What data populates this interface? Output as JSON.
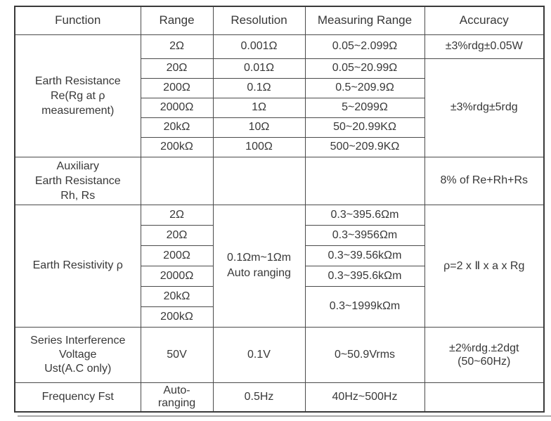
{
  "table": {
    "headers": {
      "function": "Function",
      "range": "Range",
      "resolution": "Resolution",
      "measuring_range": "Measuring Range",
      "accuracy": "Accuracy"
    },
    "earth_resistance": {
      "function_label": "Earth Resistance\nRe(Rg at ρ\nmeasurement)",
      "rows": [
        {
          "range": "2Ω",
          "resolution": "0.001Ω",
          "measuring_range": "0.05~2.099Ω"
        },
        {
          "range": "20Ω",
          "resolution": "0.01Ω",
          "measuring_range": "0.05~20.99Ω"
        },
        {
          "range": "200Ω",
          "resolution": "0.1Ω",
          "measuring_range": "0.5~209.9Ω"
        },
        {
          "range": "2000Ω",
          "resolution": "1Ω",
          "measuring_range": "5~2099Ω"
        },
        {
          "range": "20kΩ",
          "resolution": "10Ω",
          "measuring_range": "50~20.99KΩ"
        },
        {
          "range": "200kΩ",
          "resolution": "100Ω",
          "measuring_range": "500~209.9KΩ"
        }
      ],
      "accuracy_first_row": "±3%rdg±0.05W",
      "accuracy_remaining_rows": "±3%rdg±5rdg"
    },
    "auxiliary_earth_resistance": {
      "function_label": "Auxiliary\nEarth Resistance\nRh, Rs",
      "range": "",
      "resolution": "",
      "measuring_range": "",
      "accuracy": "8% of Re+Rh+Rs"
    },
    "earth_resistivity": {
      "function_label": "Earth Resistivity ρ",
      "ranges": [
        "2Ω",
        "20Ω",
        "200Ω",
        "2000Ω",
        "20kΩ",
        "200kΩ"
      ],
      "resolution": "0.1Ωm~1Ωm\nAuto ranging",
      "measuring_ranges": [
        "0.3~395.6Ωm",
        "0.3~3956Ωm",
        "0.3~39.56kΩm",
        "0.3~395.6kΩm",
        "0.3~1999kΩm"
      ],
      "accuracy": "ρ=2 x Ⅱ x a x Rg"
    },
    "series_interference": {
      "function_label": "Series Interference\nVoltage\nUst(A.C only)",
      "range": "50V",
      "resolution": "0.1V",
      "measuring_range": "0~50.9Vrms",
      "accuracy": "±2%rdg.±2dgt\n(50~60Hz)"
    },
    "frequency": {
      "function_label": "Frequency Fst",
      "range": "Auto-\nranging",
      "resolution": "0.5Hz",
      "measuring_range": "40Hz~500Hz",
      "accuracy": ""
    }
  }
}
